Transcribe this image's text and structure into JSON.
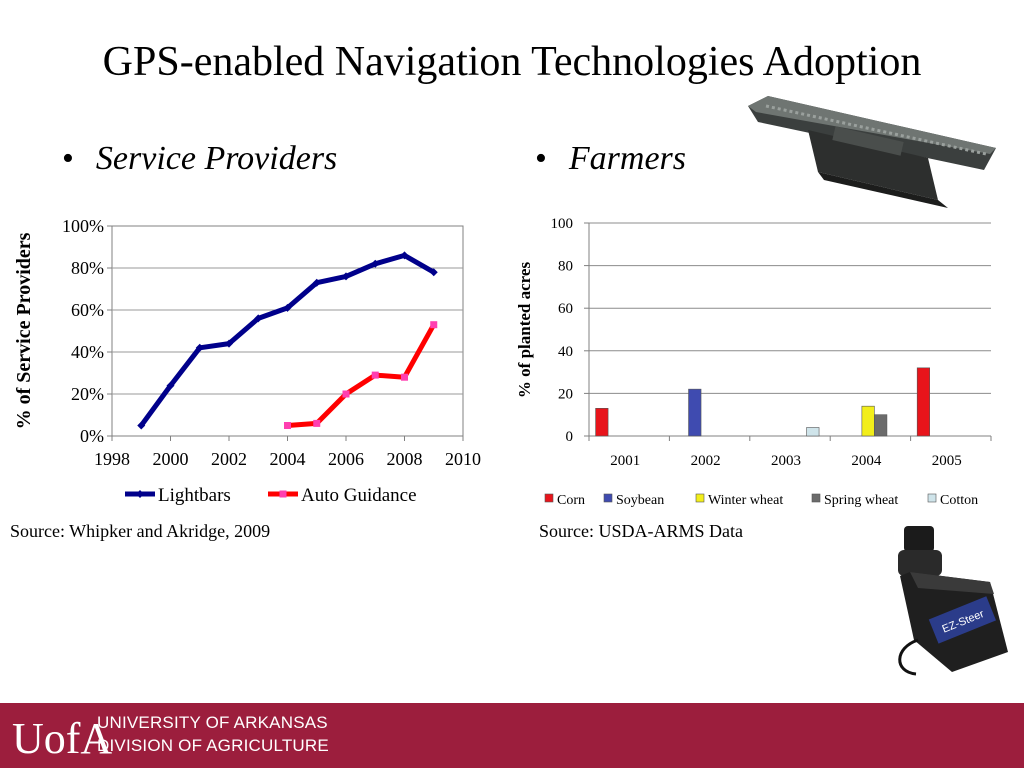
{
  "slide": {
    "title": "GPS-enabled Navigation Technologies Adoption",
    "left_heading": "Service Providers",
    "right_heading": "Farmers",
    "left_source": "Source:  Whipker and Akridge, 2009",
    "right_source": "Source: USDA-ARMS Data",
    "photo_label": "EZ-Steer"
  },
  "footer": {
    "logo": "UofA",
    "line1": "UNIVERSITY OF ARKANSAS",
    "line2": "DIVISION OF AGRICULTURE",
    "color": "#9c1e3d"
  },
  "chart_data": [
    {
      "type": "line",
      "ylabel": "% of Service Providers",
      "xlim": [
        1998,
        2010
      ],
      "ylim": [
        0,
        100
      ],
      "x_ticks": [
        "1998",
        "2000",
        "2002",
        "2004",
        "2006",
        "2008",
        "2010"
      ],
      "y_ticks": [
        "0%",
        "20%",
        "40%",
        "60%",
        "80%",
        "100%"
      ],
      "grid": true,
      "legend_position": "bottom",
      "series": [
        {
          "name": "Lightbars",
          "color": "#00008b",
          "x": [
            1999,
            2000,
            2001,
            2002,
            2003,
            2004,
            2005,
            2006,
            2007,
            2008,
            2009
          ],
          "y": [
            5,
            24,
            42,
            44,
            56,
            61,
            73,
            76,
            82,
            86,
            78
          ]
        },
        {
          "name": "Auto Guidance",
          "color": "#ff0000",
          "x": [
            2004,
            2005,
            2006,
            2007,
            2008,
            2009
          ],
          "y": [
            5,
            6,
            20,
            29,
            28,
            53
          ]
        }
      ]
    },
    {
      "type": "bar",
      "ylabel": "% of planted acres",
      "ylim": [
        0,
        100
      ],
      "y_ticks": [
        "0",
        "20",
        "40",
        "60",
        "80",
        "100"
      ],
      "categories": [
        "2001",
        "2002",
        "2003",
        "2004",
        "2005"
      ],
      "grid": true,
      "legend_position": "bottom",
      "series": [
        {
          "name": "Corn",
          "color": "#e8141b",
          "values": [
            13,
            null,
            null,
            null,
            32
          ]
        },
        {
          "name": "Soybean",
          "color": "#3f4bb0",
          "values": [
            null,
            22,
            null,
            null,
            null
          ]
        },
        {
          "name": "Winter wheat",
          "color": "#f2ee1a",
          "values": [
            null,
            null,
            null,
            14,
            null
          ]
        },
        {
          "name": "Spring wheat",
          "color": "#6b6b6b",
          "values": [
            null,
            null,
            null,
            10,
            null
          ]
        },
        {
          "name": "Cotton",
          "color": "#cfe4ea",
          "values": [
            null,
            null,
            4,
            null,
            null
          ]
        }
      ]
    }
  ]
}
